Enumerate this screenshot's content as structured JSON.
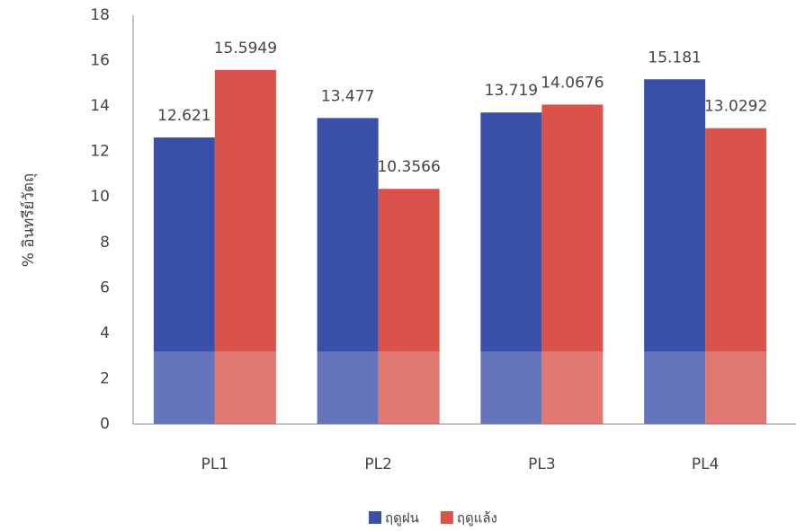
{
  "chart_data": {
    "type": "bar",
    "y_label": "% อินทรีย์วัตถุ",
    "categories": [
      "PL1",
      "PL2",
      "PL3",
      "PL4"
    ],
    "series": [
      {
        "name": "ฤดูฝน",
        "color": "#3a4fa8",
        "values": [
          12.621,
          13.477,
          13.719,
          15.181
        ]
      },
      {
        "name": "ฤดูแล้ง",
        "color": "#d9534a",
        "values": [
          15.5949,
          10.3566,
          14.0676,
          13.0292
        ]
      }
    ],
    "ylim": [
      0,
      18
    ],
    "yticks": [
      0,
      2,
      4,
      6,
      8,
      10,
      12,
      14,
      16,
      18
    ],
    "grid": false,
    "legend": "bottom"
  }
}
